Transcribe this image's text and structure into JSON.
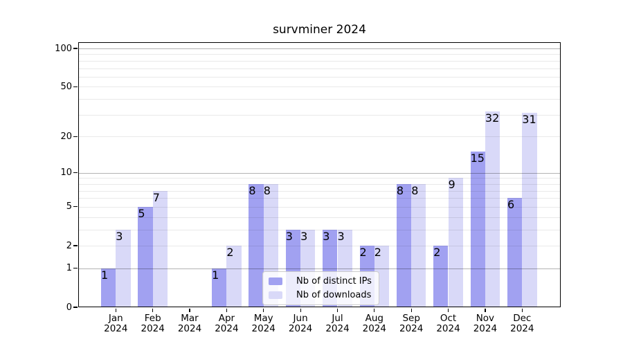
{
  "chart_data": {
    "type": "bar",
    "title": "survminer 2024",
    "months": [
      "Jan",
      "Feb",
      "Mar",
      "Apr",
      "May",
      "Jun",
      "Jul",
      "Aug",
      "Sep",
      "Oct",
      "Nov",
      "Dec"
    ],
    "year": "2024",
    "series": [
      {
        "name": "Nb of distinct IPs",
        "color": "#a1a1f1",
        "values": [
          1,
          5,
          0,
          1,
          8,
          3,
          3,
          2,
          8,
          2,
          15,
          6
        ]
      },
      {
        "name": "Nb of downloads",
        "color": "#d9d9f8",
        "values": [
          3,
          7,
          0,
          2,
          8,
          3,
          3,
          2,
          8,
          9,
          32,
          31
        ]
      }
    ],
    "y_scale": "log1p",
    "ylim": [
      0,
      100
    ],
    "y_ticks": [
      0,
      1,
      2,
      5,
      10,
      20,
      50,
      100
    ],
    "y_major_gridlines": [
      1,
      10,
      100
    ],
    "y_minor_gridlines": [
      2,
      3,
      4,
      5,
      6,
      7,
      8,
      9,
      20,
      30,
      40,
      50,
      60,
      70,
      80,
      90
    ],
    "grid": "horizontal",
    "legend_position": "lower-center-inside"
  }
}
